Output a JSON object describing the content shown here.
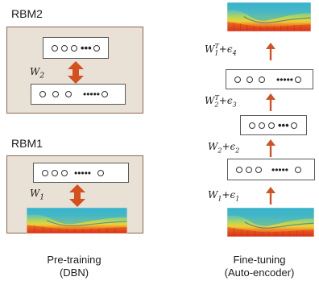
{
  "pretraining": {
    "rbm2": {
      "label": "RBM2",
      "weight_label": "W",
      "weight_sub": "2"
    },
    "rbm1": {
      "label": "RBM1",
      "weight_label": "W",
      "weight_sub": "1"
    },
    "caption_line1": "Pre-training",
    "caption_line2": "(DBN)"
  },
  "finetuning": {
    "weights": [
      {
        "main": "W",
        "sub": "1",
        "sup": "",
        "plus": "+",
        "eps": "ϵ",
        "eps_sub": "1"
      },
      {
        "main": "W",
        "sub": "2",
        "sup": "",
        "plus": "+",
        "eps": "ϵ",
        "eps_sub": "2"
      },
      {
        "main": "W",
        "sub": "2",
        "sup": "T",
        "plus": "+",
        "eps": "ϵ",
        "eps_sub": "3"
      },
      {
        "main": "W",
        "sub": "1",
        "sup": "T",
        "plus": "+",
        "eps": "ϵ",
        "eps_sub": "4"
      }
    ],
    "caption_line1": "Fine-tuning",
    "caption_line2": "(Auto-encoder)"
  },
  "colors": {
    "panel_bg": "#e9e0d6",
    "panel_border": "#8a6a52",
    "double_arrow": "#d2511f",
    "up_arrow": "#c8552b"
  },
  "icons": {
    "units": "circle-units",
    "double_arrow": "double-arrow-icon",
    "up_arrow": "up-arrow-icon",
    "spectrogram": "spectrogram-image"
  }
}
